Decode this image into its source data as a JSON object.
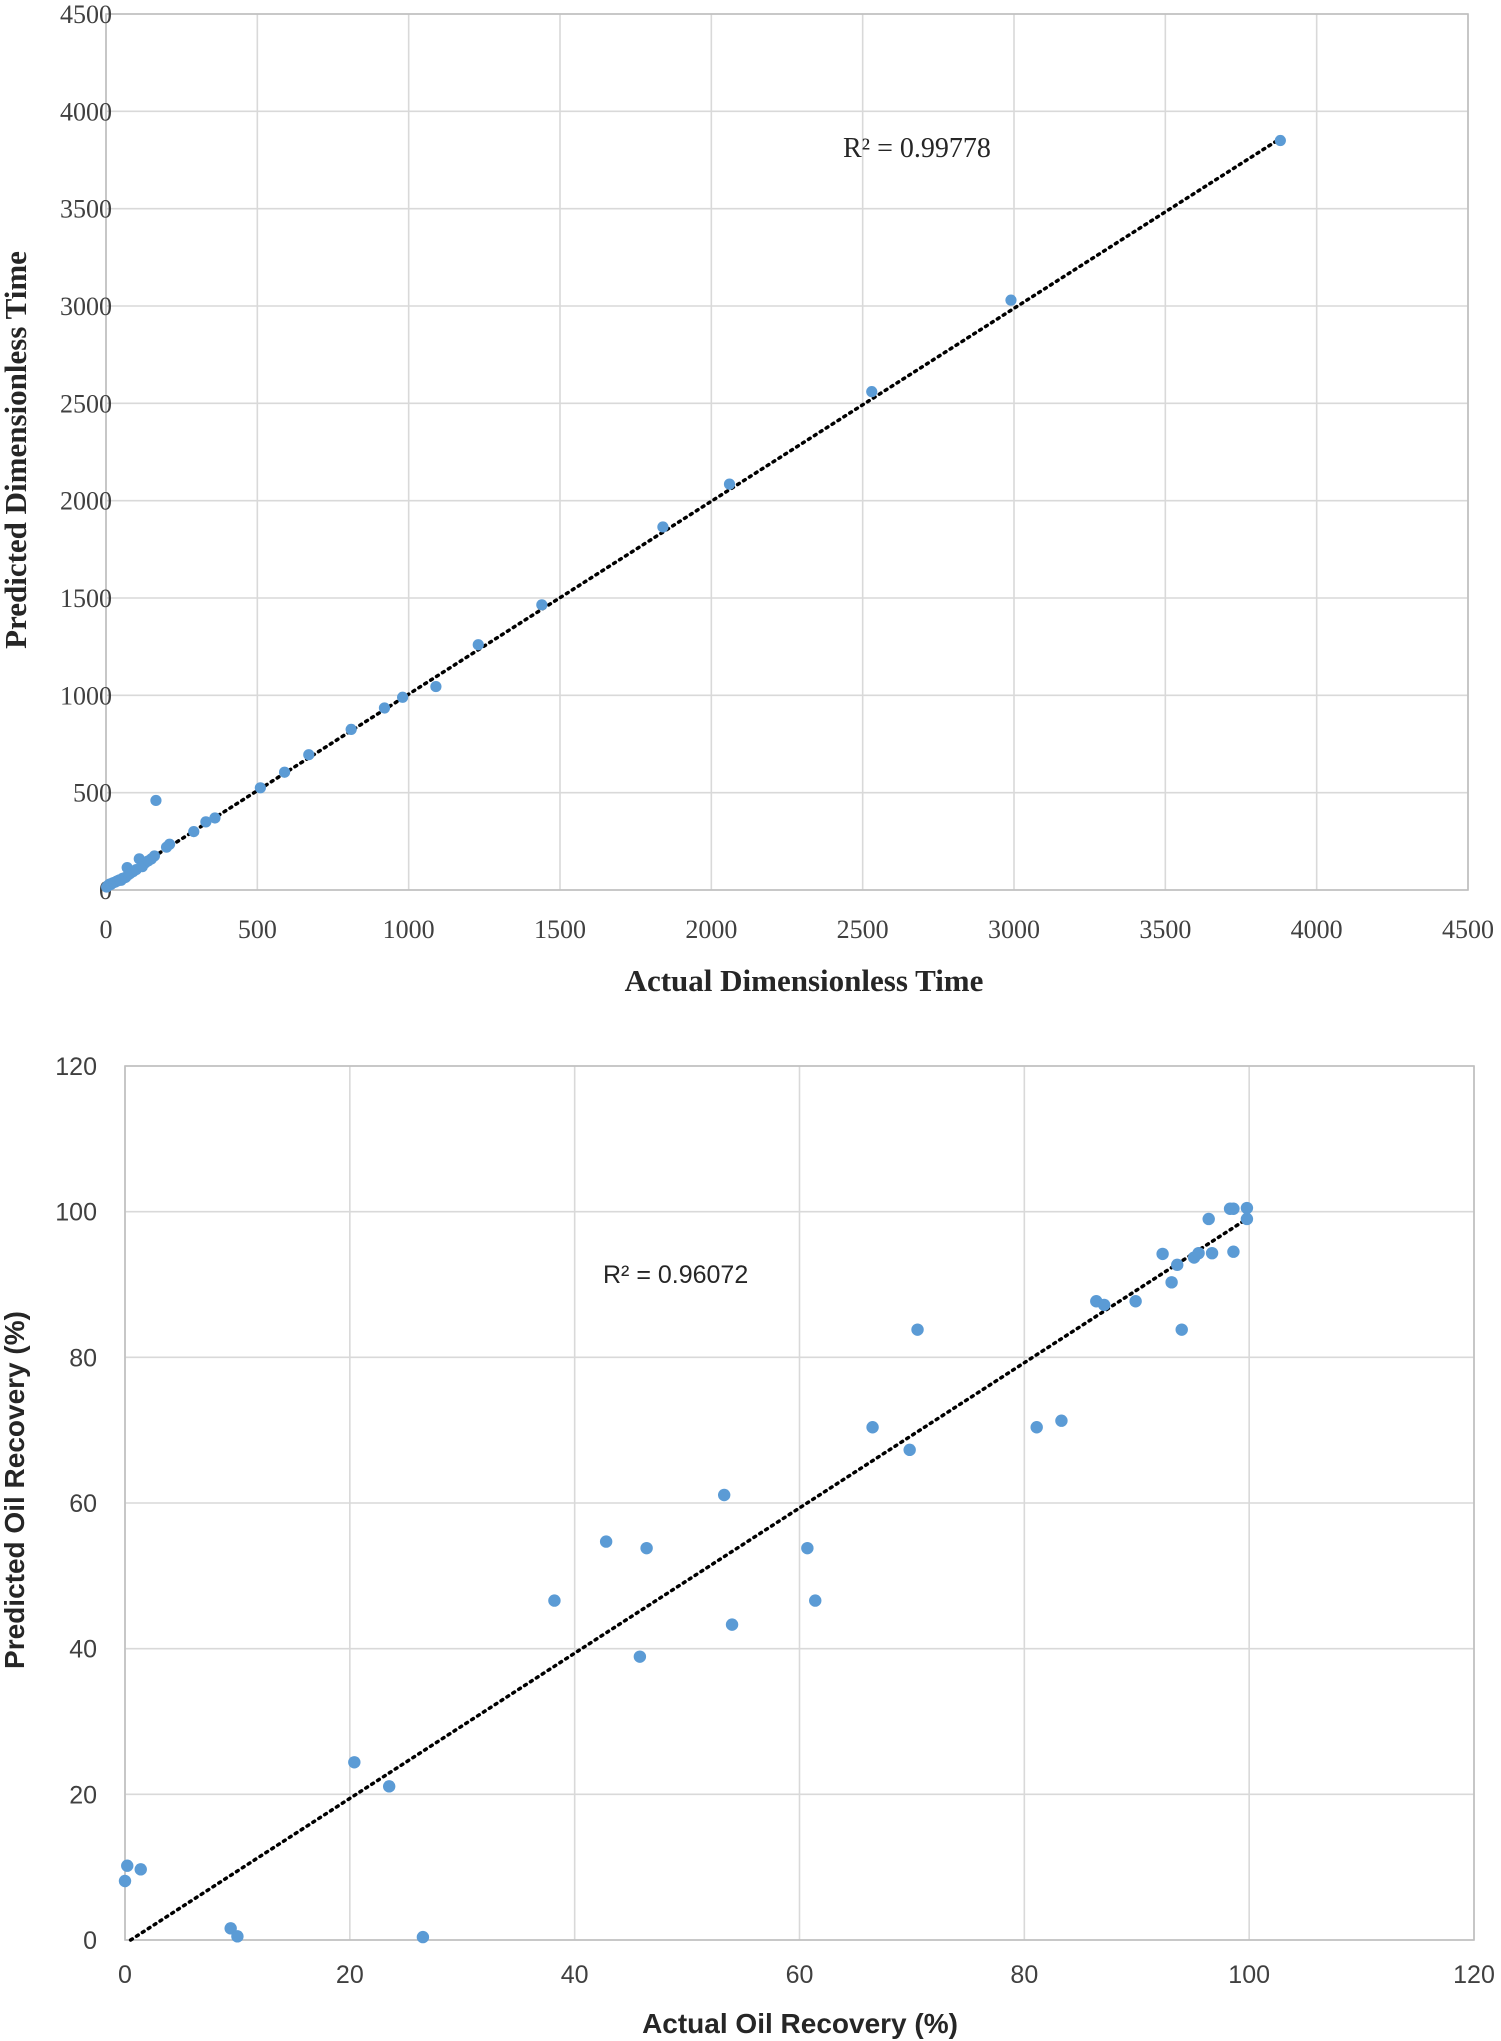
{
  "colors": {
    "point": "#5b9bd5",
    "grid": "#d9d9d9",
    "trendline": "#000000"
  },
  "chart_data": [
    {
      "type": "scatter",
      "xlabel": "Actual Dimensionless Time",
      "ylabel": "Predicted Dimensionless Time",
      "xlim": [
        0,
        4500
      ],
      "ylim": [
        0,
        4500
      ],
      "xticks": [
        "0",
        "500",
        "1000",
        "1500",
        "2000",
        "2500",
        "3000",
        "3500",
        "4000",
        "4500"
      ],
      "yticks": [
        "0",
        "500",
        "1000",
        "1500",
        "2000",
        "2500",
        "3000",
        "3500",
        "4000",
        "4500"
      ],
      "grid": true,
      "annotation": "R² = 0.99778",
      "trendline": {
        "style": "dotted",
        "x": [
          0,
          3880
        ],
        "y": [
          15,
          3860
        ]
      },
      "series": [
        {
          "x": [
            2,
            5,
            8,
            12,
            16,
            20,
            25,
            30,
            35,
            40,
            45,
            50,
            55,
            60,
            65,
            70,
            75,
            80,
            90,
            100,
            110,
            120,
            130,
            140,
            150,
            160,
            165,
            200,
            210,
            290,
            330,
            360,
            510,
            590,
            670,
            810,
            920,
            980,
            1090,
            1230,
            1440,
            1840,
            2060,
            2530,
            2990,
            3880
          ],
          "y": [
            15,
            20,
            25,
            30,
            28,
            35,
            38,
            40,
            45,
            48,
            52,
            50,
            60,
            62,
            65,
            115,
            80,
            85,
            95,
            105,
            160,
            120,
            140,
            150,
            160,
            175,
            460,
            220,
            235,
            300,
            350,
            370,
            525,
            605,
            695,
            825,
            935,
            990,
            1045,
            1260,
            1465,
            1865,
            2085,
            2560,
            3030,
            3850
          ]
        }
      ]
    },
    {
      "type": "scatter",
      "xlabel": "Actual Oil Recovery (%)",
      "ylabel": "Predicted Oil Recovery (%)",
      "xlim": [
        0,
        120
      ],
      "ylim": [
        0,
        120
      ],
      "xticks": [
        "0",
        "20",
        "40",
        "60",
        "80",
        "100",
        "120"
      ],
      "yticks": [
        "0",
        "20",
        "40",
        "60",
        "80",
        "100",
        "120"
      ],
      "grid": true,
      "annotation": "R² = 0.96072",
      "trendline": {
        "style": "dotted",
        "x": [
          0.5,
          100.3
        ],
        "y": [
          0,
          99.5
        ]
      },
      "series": [
        {
          "x": [
            0.2,
            0,
            1.4,
            9.4,
            10,
            20.4,
            23.5,
            26.5,
            38.2,
            42.8,
            45.8,
            46.4,
            53.3,
            54,
            60.7,
            61.4,
            66.5,
            69.8,
            70.5,
            81.1,
            83.3,
            86.4,
            87.1,
            89.9,
            92.3,
            93.1,
            93.6,
            94,
            95.1,
            95.5,
            96.4,
            96.7,
            98.3,
            98.6,
            98.6,
            99.8,
            99.8
          ],
          "y": [
            10.2,
            8.1,
            9.7,
            1.6,
            0.5,
            24.4,
            21.1,
            0.4,
            46.6,
            54.7,
            38.9,
            53.8,
            61.1,
            43.3,
            53.8,
            46.6,
            70.4,
            67.3,
            83.8,
            70.4,
            71.3,
            87.7,
            87.2,
            87.7,
            94.2,
            90.3,
            92.7,
            83.8,
            93.7,
            94.3,
            99,
            94.3,
            100.4,
            100.4,
            94.5,
            100.5,
            99
          ]
        }
      ]
    }
  ]
}
